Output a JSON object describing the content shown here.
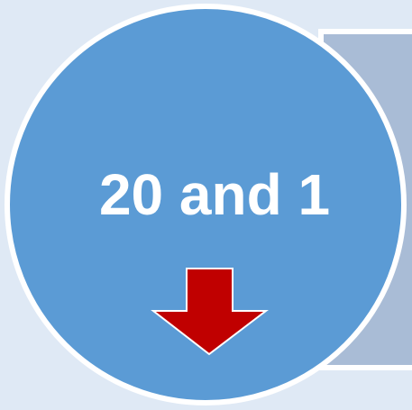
{
  "label": "20 and 1"
}
